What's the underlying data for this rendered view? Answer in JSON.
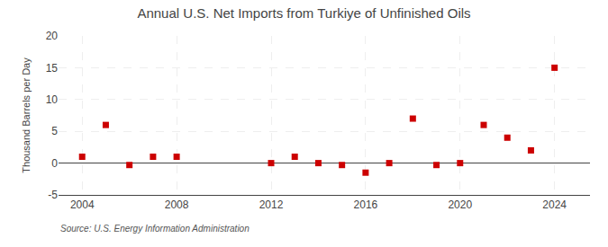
{
  "chart_data": {
    "type": "scatter",
    "title": "Annual U.S. Net Imports from Turkiye of Unfinished Oils",
    "ylabel": "Thousand Barrels per Day",
    "annotations": [
      "Source: U.S. Energy Information Administration"
    ],
    "x": [
      2004,
      2005,
      2006,
      2007,
      2008,
      2012,
      2013,
      2014,
      2015,
      2016,
      2017,
      2018,
      2019,
      2020,
      2021,
      2022,
      2023,
      2024
    ],
    "values": [
      1,
      6,
      -0.3,
      1,
      1,
      0,
      1,
      0,
      -0.3,
      -1.5,
      0,
      7,
      -0.3,
      0,
      6,
      4,
      2,
      15
    ],
    "color": "#cc0000",
    "marker": "square",
    "xlim": [
      2003,
      2025.5
    ],
    "xticks": [
      2004,
      2008,
      2012,
      2016,
      2020,
      2024
    ],
    "ylim": [
      -5,
      20
    ],
    "yticks": [
      -5,
      0,
      5,
      10,
      15,
      20
    ],
    "grid": true
  }
}
